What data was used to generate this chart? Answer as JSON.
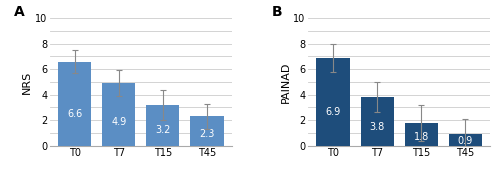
{
  "chart_A": {
    "label": "A",
    "categories": [
      "T0",
      "T7",
      "T15",
      "T45"
    ],
    "values": [
      6.6,
      4.9,
      3.2,
      2.3
    ],
    "errors": [
      0.9,
      1.0,
      1.2,
      1.0
    ],
    "bar_color": "#5b8ec4",
    "ylabel": "NRS",
    "ylim": [
      0,
      10
    ],
    "yticks": [
      0,
      1,
      2,
      3,
      4,
      5,
      6,
      7,
      8,
      9,
      10
    ],
    "yticklabels": [
      "0",
      "",
      "2",
      "",
      "4",
      "",
      "6",
      "",
      "8",
      "",
      "10"
    ]
  },
  "chart_B": {
    "label": "B",
    "categories": [
      "T0",
      "T7",
      "T15",
      "T45"
    ],
    "values": [
      6.9,
      3.8,
      1.8,
      0.9
    ],
    "errors": [
      1.1,
      1.2,
      1.4,
      1.2
    ],
    "bar_color": "#1e4d7b",
    "ylabel": "PAINAD",
    "ylim": [
      0,
      10
    ],
    "yticks": [
      0,
      1,
      2,
      3,
      4,
      5,
      6,
      7,
      8,
      9,
      10
    ],
    "yticklabels": [
      "0",
      "",
      "2",
      "",
      "4",
      "",
      "6",
      "",
      "8",
      "",
      "10"
    ]
  },
  "text_color_label": "white",
  "label_fontsize": 7,
  "axis_label_fontsize": 8,
  "tick_fontsize": 7,
  "panel_label_fontsize": 10,
  "background_color": "#ffffff",
  "grid_color": "#cccccc"
}
